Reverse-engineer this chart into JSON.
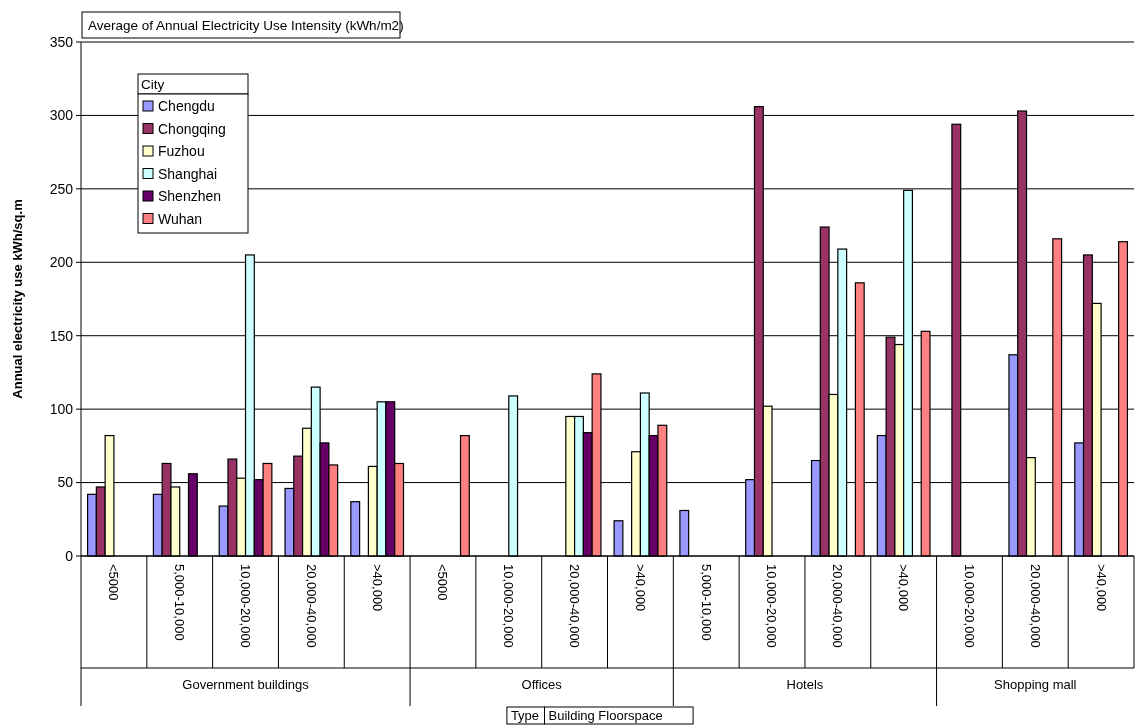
{
  "chart_data": {
    "type": "bar",
    "title": "Average of Annual Electricity Use Intensity (kWh/m2)",
    "ylabel": "Annual electricity use kWh/sq.m",
    "legend_title": "City",
    "legend": "top left",
    "grid": "y",
    "categories": [
      "<5000",
      "5,000-10,000",
      "10,000-20,000",
      "20,000-40,000",
      ">40,000",
      "<5000",
      "10,000-20,000",
      "20,000-40,000",
      ">40,000",
      "5,000-10,000",
      "10,000-20,000",
      "20,000-40,000",
      ">40,000",
      "10,000-20,000",
      "20,000-40,000",
      ">40,000"
    ],
    "ylim": [
      0,
      350
    ],
    "yticks": [
      0,
      50,
      100,
      150,
      200,
      250,
      300,
      350
    ],
    "series": [
      {
        "name": "Chengdu",
        "color": "#9999ff",
        "values": [
          42,
          42,
          34,
          46,
          37,
          null,
          null,
          null,
          24,
          31,
          52,
          65,
          82,
          null,
          137,
          77
        ]
      },
      {
        "name": "Chongqing",
        "color": "#993366",
        "values": [
          47,
          63,
          66,
          68,
          null,
          null,
          null,
          null,
          null,
          null,
          306,
          224,
          149,
          294,
          303,
          205
        ]
      },
      {
        "name": "Fuzhou",
        "color": "#ffffcc",
        "values": [
          82,
          47,
          53,
          87,
          61,
          null,
          null,
          95,
          71,
          null,
          102,
          110,
          144,
          null,
          67,
          172
        ]
      },
      {
        "name": "Shanghai",
        "color": "#ccffff",
        "values": [
          null,
          null,
          205,
          115,
          105,
          null,
          109,
          95,
          111,
          null,
          null,
          209,
          249,
          null,
          null,
          null
        ]
      },
      {
        "name": "Shenzhen",
        "color": "#660066",
        "values": [
          null,
          56,
          52,
          77,
          105,
          null,
          null,
          84,
          82,
          null,
          null,
          null,
          null,
          null,
          null,
          null
        ]
      },
      {
        "name": "Wuhan",
        "color": "#ff8080",
        "values": [
          null,
          null,
          63,
          62,
          63,
          82,
          null,
          124,
          89,
          null,
          null,
          186,
          153,
          null,
          216,
          214
        ]
      }
    ],
    "annotations": [
      "Government buildings",
      "Offices",
      "Hotels",
      "Shopping mall",
      "Type",
      "Building Floorspace"
    ]
  }
}
